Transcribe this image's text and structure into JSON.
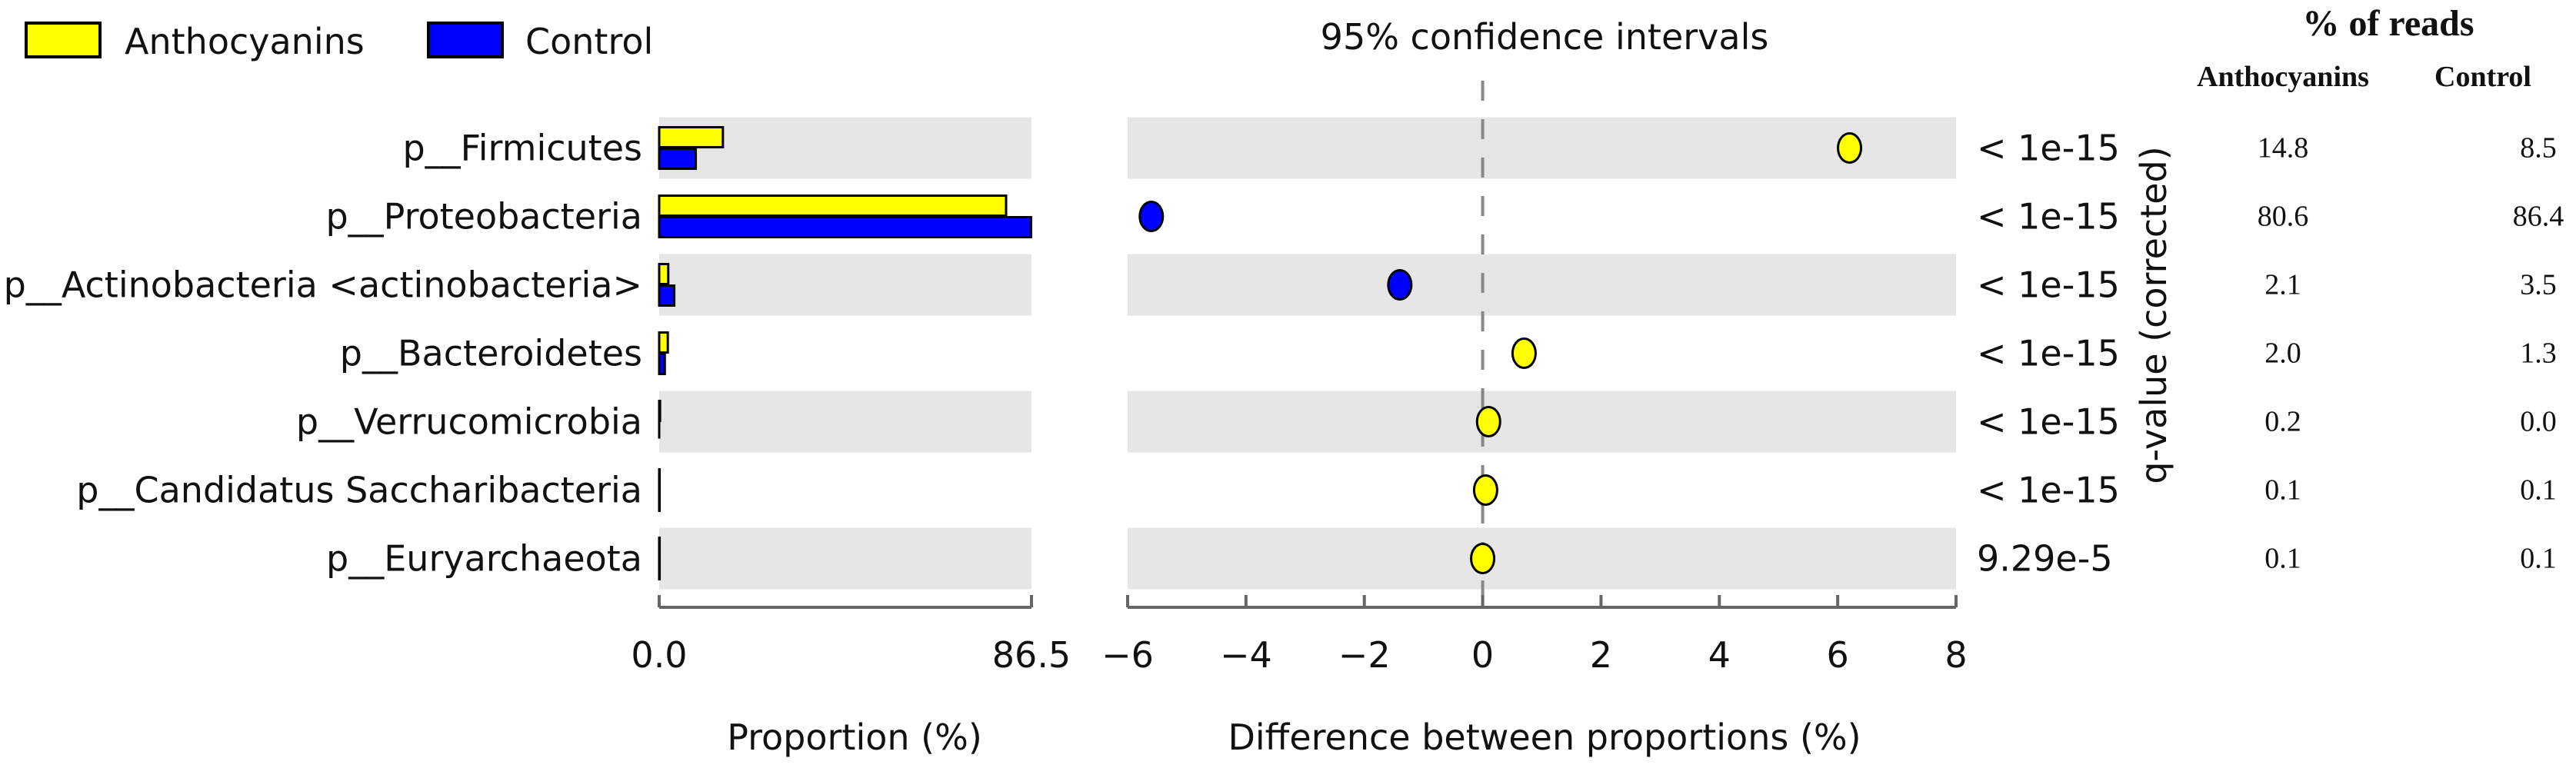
{
  "chart_data": {
    "type": "bar",
    "legend": [
      {
        "name": "Anthocyanins",
        "color": "#ffff00"
      },
      {
        "name": "Control",
        "color": "#0000ff"
      }
    ],
    "categories": [
      "p__Firmicutes",
      "p__Proteobacteria",
      "p__Actinobacteria <actinobacteria>",
      "p__Bacteroidetes",
      "p__Verrucomicrobia",
      "p__Candidatus Saccharibacteria",
      "p__Euryarchaeota"
    ],
    "series": [
      {
        "name": "Anthocyanins",
        "color": "#ffff00",
        "values": [
          14.8,
          80.6,
          2.1,
          2.0,
          0.2,
          0.1,
          0.1
        ]
      },
      {
        "name": "Control",
        "color": "#0000ff",
        "values": [
          8.5,
          86.4,
          3.5,
          1.3,
          0.0,
          0.1,
          0.1
        ]
      }
    ],
    "proportion_axis": {
      "xlabel": "Proportion (%)",
      "xlim": [
        0,
        86.5
      ],
      "ticks": [
        0,
        86.5
      ],
      "tick_labels": [
        "0.0",
        "86.5"
      ]
    },
    "difference_axis": {
      "title": "95% confidence intervals",
      "xlabel": "Difference between proportions (%)",
      "xlim": [
        -6,
        8
      ],
      "ticks": [
        -6,
        -4,
        -2,
        0,
        2,
        4,
        6,
        8
      ],
      "tick_labels": [
        "−6",
        "−4",
        "−2",
        "0",
        "2",
        "4",
        "6",
        "8"
      ],
      "differences": [
        6.2,
        -5.6,
        -1.4,
        0.7,
        0.1,
        0.05,
        0.0
      ],
      "point_colors": [
        "#ffff00",
        "#0000ff",
        "#0000ff",
        "#ffff00",
        "#ffff00",
        "#ffff00",
        "#ffff00"
      ]
    },
    "q_values": {
      "label": "q-value (corrected)",
      "values": [
        "< 1e-15",
        "< 1e-15",
        "< 1e-15",
        "< 1e-15",
        "< 1e-15",
        "< 1e-15",
        "9.29e-5"
      ]
    },
    "reads_table": {
      "title": "% of reads",
      "headers": [
        "Anthocyanins",
        "Control"
      ],
      "rows": [
        [
          "14.8",
          "8.5"
        ],
        [
          "80.6",
          "86.4"
        ],
        [
          "2.1",
          "3.5"
        ],
        [
          "2.0",
          "1.3"
        ],
        [
          "0.2",
          "0.0"
        ],
        [
          "0.1",
          "0.1"
        ],
        [
          "0.1",
          "0.1"
        ]
      ]
    }
  }
}
